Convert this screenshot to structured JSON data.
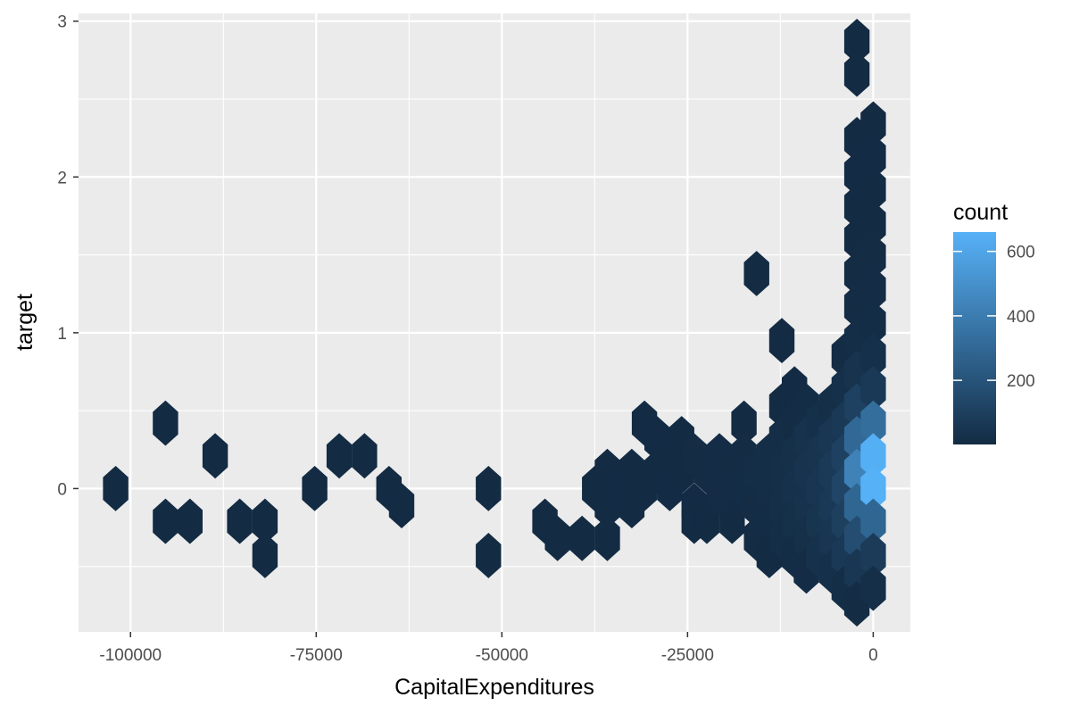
{
  "chart_data": {
    "type": "hexbin",
    "xlabel": "CapitalExpenditures",
    "ylabel": "target",
    "xlim": [
      -107000,
      5000
    ],
    "ylim": [
      -0.92,
      3.05
    ],
    "x_ticks": [
      -100000,
      -75000,
      -50000,
      -25000,
      0
    ],
    "x_tick_labels": [
      "-100000",
      "-75000",
      "-50000",
      "-25000",
      "0"
    ],
    "y_ticks": [
      0,
      1,
      2,
      3
    ],
    "y_tick_labels": [
      "0",
      "1",
      "2",
      "3"
    ],
    "grid": true,
    "legend": {
      "title": "count",
      "position": "right",
      "range": [
        1,
        660
      ],
      "ticks": [
        200,
        400,
        600
      ],
      "tick_labels": [
        "200",
        "400",
        "600"
      ],
      "color_low": "#132B43",
      "color_high": "#56B1F7"
    },
    "hexbin": {
      "x_step": 3340,
      "y_step": 0.215,
      "bins": [
        [
          -102000,
          0,
          1
        ],
        [
          -95300,
          0.42,
          1
        ],
        [
          -95300,
          -0.21,
          1
        ],
        [
          -92000,
          -0.21,
          1
        ],
        [
          -88600,
          0.21,
          1
        ],
        [
          -85300,
          -0.21,
          1
        ],
        [
          -81900,
          -0.21,
          1
        ],
        [
          -81900,
          -0.43,
          1
        ],
        [
          -75200,
          0,
          1
        ],
        [
          -71900,
          0.21,
          1
        ],
        [
          -68500,
          0.21,
          1
        ],
        [
          -65200,
          0,
          1
        ],
        [
          -63500,
          -0.11,
          1
        ],
        [
          -51800,
          0,
          1
        ],
        [
          -51800,
          -0.43,
          1
        ],
        [
          -44200,
          -0.21,
          1
        ],
        [
          -42500,
          -0.32,
          1
        ],
        [
          -39200,
          -0.32,
          1
        ],
        [
          -37500,
          0,
          2
        ],
        [
          -35800,
          0.11,
          2
        ],
        [
          -35800,
          -0.11,
          2
        ],
        [
          -35800,
          -0.32,
          1
        ],
        [
          -34100,
          0,
          3
        ],
        [
          -32500,
          0.11,
          4
        ],
        [
          -32500,
          -0.11,
          2
        ],
        [
          -30800,
          0.42,
          1
        ],
        [
          -30800,
          0,
          4
        ],
        [
          -29100,
          0.32,
          3
        ],
        [
          -29100,
          0.11,
          4
        ],
        [
          -27400,
          0.21,
          5
        ],
        [
          -27400,
          0,
          3
        ],
        [
          -25800,
          0.32,
          4
        ],
        [
          -25800,
          0.11,
          5
        ],
        [
          -24100,
          0.21,
          6
        ],
        [
          -24100,
          -0.11,
          3
        ],
        [
          -24100,
          -0.21,
          2
        ],
        [
          -22400,
          0.11,
          6
        ],
        [
          -22400,
          -0.21,
          4
        ],
        [
          -20700,
          0.21,
          7
        ],
        [
          -20700,
          0,
          8
        ],
        [
          -19000,
          0.11,
          9
        ],
        [
          -19000,
          -0.11,
          7
        ],
        [
          -19000,
          -0.21,
          5
        ],
        [
          -17400,
          0.42,
          2
        ],
        [
          -17400,
          0.21,
          10
        ],
        [
          -17400,
          0,
          12
        ],
        [
          -15700,
          1.38,
          1
        ],
        [
          -15700,
          0.11,
          14
        ],
        [
          -15700,
          -0.11,
          10
        ],
        [
          -15700,
          -0.32,
          6
        ],
        [
          -14000,
          0.21,
          15
        ],
        [
          -14000,
          0,
          16
        ],
        [
          -14000,
          -0.21,
          12
        ],
        [
          -14000,
          -0.43,
          5
        ],
        [
          -12300,
          0.95,
          1
        ],
        [
          -12300,
          0.53,
          4
        ],
        [
          -12300,
          0.32,
          18
        ],
        [
          -12300,
          0.11,
          22
        ],
        [
          -12300,
          -0.11,
          20
        ],
        [
          -12300,
          -0.32,
          14
        ],
        [
          -10600,
          0.64,
          3
        ],
        [
          -10600,
          0.42,
          10
        ],
        [
          -10600,
          0.21,
          26
        ],
        [
          -10600,
          0,
          30
        ],
        [
          -10600,
          -0.21,
          24
        ],
        [
          -10600,
          -0.43,
          12
        ],
        [
          -9000,
          0.53,
          12
        ],
        [
          -9000,
          0.32,
          34
        ],
        [
          -9000,
          0.11,
          40
        ],
        [
          -9000,
          -0.11,
          36
        ],
        [
          -9000,
          -0.32,
          28
        ],
        [
          -9000,
          -0.53,
          8
        ],
        [
          -7300,
          0.42,
          25
        ],
        [
          -7300,
          0.21,
          48
        ],
        [
          -7300,
          0,
          55
        ],
        [
          -7300,
          -0.21,
          50
        ],
        [
          -7300,
          -0.43,
          30
        ],
        [
          -5600,
          0.53,
          20
        ],
        [
          -5600,
          0.32,
          60
        ],
        [
          -5600,
          0.11,
          75
        ],
        [
          -5600,
          -0.11,
          70
        ],
        [
          -5600,
          -0.32,
          55
        ],
        [
          -5600,
          -0.53,
          25
        ],
        [
          -3900,
          0.85,
          6
        ],
        [
          -3900,
          0.64,
          25
        ],
        [
          -3900,
          0.42,
          70
        ],
        [
          -3900,
          0.21,
          110
        ],
        [
          -3900,
          0,
          130
        ],
        [
          -3900,
          -0.21,
          105
        ],
        [
          -3900,
          -0.43,
          70
        ],
        [
          -3900,
          -0.64,
          18
        ],
        [
          -2200,
          2.87,
          1
        ],
        [
          -2200,
          2.66,
          1
        ],
        [
          -2200,
          2.24,
          2
        ],
        [
          -2200,
          2.02,
          3
        ],
        [
          -2200,
          1.81,
          4
        ],
        [
          -2200,
          1.6,
          5
        ],
        [
          -2200,
          1.38,
          6
        ],
        [
          -2200,
          1.17,
          10
        ],
        [
          -2200,
          0.95,
          15
        ],
        [
          -2200,
          0.74,
          40
        ],
        [
          -2200,
          0.53,
          110
        ],
        [
          -2200,
          0.32,
          300
        ],
        [
          -2200,
          0.11,
          430
        ],
        [
          -2200,
          -0.11,
          290
        ],
        [
          -2200,
          -0.32,
          170
        ],
        [
          -2200,
          -0.53,
          60
        ],
        [
          -2200,
          -0.74,
          10
        ],
        [
          0,
          2.34,
          2
        ],
        [
          0,
          2.13,
          3
        ],
        [
          0,
          1.92,
          4
        ],
        [
          0,
          1.7,
          5
        ],
        [
          0,
          1.49,
          6
        ],
        [
          0,
          1.28,
          8
        ],
        [
          0,
          1.06,
          12
        ],
        [
          0,
          0.85,
          25
        ],
        [
          0,
          0.64,
          70
        ],
        [
          0,
          0.42,
          330
        ],
        [
          0,
          0.21,
          650
        ],
        [
          0,
          0,
          660
        ],
        [
          0,
          -0.21,
          290
        ],
        [
          0,
          -0.43,
          80
        ],
        [
          0,
          -0.64,
          20
        ]
      ]
    }
  }
}
